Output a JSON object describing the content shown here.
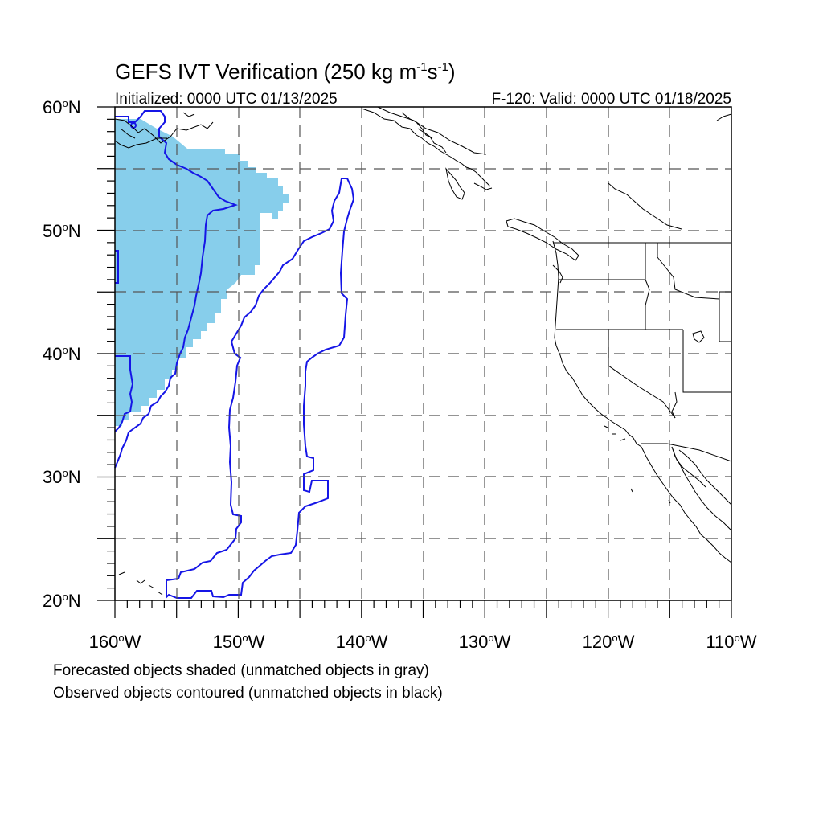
{
  "title": {
    "main": "GEFS IVT Verification (250 kg m",
    "exp1": "-1",
    "mid": "s",
    "exp2": "-1",
    "close": ")"
  },
  "subtitle_left": "Initialized: 0000 UTC 01/13/2025",
  "subtitle_right": "F-120: Valid: 0000 UTC 01/18/2025",
  "map": {
    "lon_range": [
      -160,
      -110
    ],
    "lat_range": [
      20,
      60
    ],
    "lon_ticks": [
      {
        "deg": "160",
        "hemi": "W"
      },
      {
        "deg": "150",
        "hemi": "W"
      },
      {
        "deg": "140",
        "hemi": "W"
      },
      {
        "deg": "130",
        "hemi": "W"
      },
      {
        "deg": "120",
        "hemi": "W"
      },
      {
        "deg": "110",
        "hemi": "W"
      }
    ],
    "lat_ticks": [
      {
        "deg": "60",
        "hemi": "N"
      },
      {
        "deg": "50",
        "hemi": "N"
      },
      {
        "deg": "40",
        "hemi": "N"
      },
      {
        "deg": "30",
        "hemi": "N"
      },
      {
        "deg": "20",
        "hemi": "N"
      }
    ],
    "gridlines": "dashed every 5 degrees",
    "colors": {
      "forecast_fill": "#87ceeb",
      "observed_contour": "#1515e6",
      "coastline": "#000000",
      "grid": "#555555"
    }
  },
  "captions": {
    "line1": "Forecasted objects shaded (unmatched objects in gray)",
    "line2": "Observed objects contoured (unmatched objects in black)"
  }
}
